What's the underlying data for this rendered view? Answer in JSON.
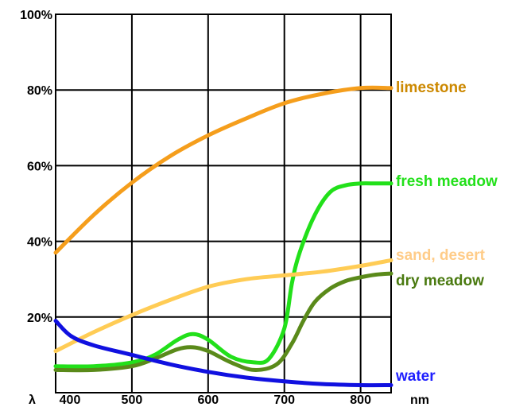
{
  "chart_data": {
    "type": "line",
    "title": "",
    "xlabel": "",
    "ylabel": "",
    "x_symbol": "λ",
    "x_unit": "nm",
    "xlim": [
      400,
      840
    ],
    "ylim": [
      0,
      100
    ],
    "x_ticks": [
      400,
      500,
      600,
      700,
      800
    ],
    "x_tick_labels": [
      "400",
      "500",
      "600",
      "700",
      "800"
    ],
    "y_ticks": [
      20,
      40,
      60,
      80,
      100
    ],
    "y_tick_labels": [
      "20%",
      "40%",
      "60%",
      "80%",
      "100%"
    ],
    "grid": true,
    "legend": "labels at right end of each curve",
    "series": [
      {
        "name": "limestone",
        "color": "#f59e1c",
        "label_color": "#cc8800",
        "x": [
          400,
          450,
          500,
          550,
          600,
          650,
          700,
          750,
          800,
          840
        ],
        "y": [
          37,
          47,
          55.5,
          62.5,
          68,
          72.5,
          76.5,
          79,
          80.5,
          80.5
        ]
      },
      {
        "name": "fresh meadow",
        "color": "#22e01a",
        "label_color": "#22e01a",
        "x": [
          400,
          450,
          500,
          530,
          560,
          580,
          600,
          630,
          660,
          680,
          700,
          710,
          720,
          740,
          760,
          780,
          800,
          820,
          840
        ],
        "y": [
          7,
          7,
          8,
          10,
          14,
          15.5,
          14,
          9.5,
          8,
          9,
          17,
          29,
          37,
          47,
          53,
          54.8,
          55.3,
          55.3,
          55.3
        ]
      },
      {
        "name": "sand, desert",
        "color": "#ffcc55",
        "label_color": "#ffcc88",
        "x": [
          400,
          450,
          500,
          550,
          600,
          650,
          700,
          750,
          800,
          840
        ],
        "y": [
          11,
          16,
          20.5,
          24.5,
          28,
          30,
          31,
          32,
          33.5,
          35
        ]
      },
      {
        "name": "dry meadow",
        "color": "#5a8a1a",
        "label_color": "#4a7a10",
        "x": [
          400,
          450,
          500,
          530,
          560,
          580,
          600,
          630,
          660,
          690,
          710,
          725,
          740,
          760,
          780,
          800,
          820,
          840
        ],
        "y": [
          6,
          6,
          7,
          9,
          11.5,
          12,
          11,
          8,
          6,
          7.5,
          13,
          19,
          24,
          27.5,
          29.5,
          30.5,
          31.2,
          31.5
        ]
      },
      {
        "name": "water",
        "color": "#1010e0",
        "label_color": "#2020ff",
        "x": [
          400,
          420,
          450,
          500,
          550,
          600,
          650,
          700,
          750,
          800,
          840
        ],
        "y": [
          19,
          15,
          12.5,
          10,
          7.5,
          5.5,
          4,
          3,
          2.3,
          2,
          2
        ]
      }
    ]
  }
}
